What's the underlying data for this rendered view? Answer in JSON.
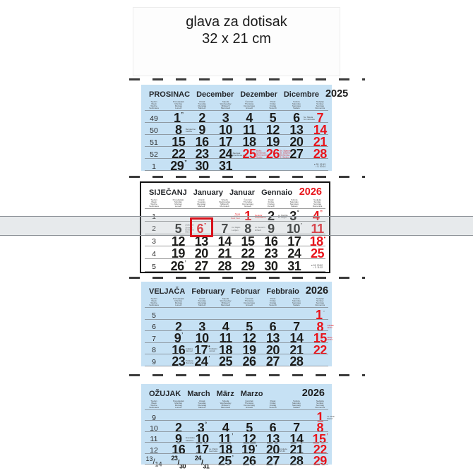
{
  "header": {
    "line1": "glava za dotisak",
    "line2": "32 x 21 cm"
  },
  "colors": {
    "panel_blue": "#c6e1f4",
    "holiday_red": "#e8141b",
    "cursor_red": "#d9121b",
    "band_gray": "#b0b8bf"
  },
  "weekday_header": {
    "week": [
      "Tjedan",
      "Week",
      "Woche",
      "Settimana"
    ],
    "days": [
      [
        "Ponedjeljak",
        "Monday",
        "Montag",
        "Lunedì"
      ],
      [
        "Utorak",
        "Tuesday",
        "Dienstag",
        "Martedì"
      ],
      [
        "Srijeda",
        "Wednesday",
        "Mittwoch",
        "Mercoledì"
      ],
      [
        "Četvrtak",
        "Thursday",
        "Donnerstag",
        "Giovedì"
      ],
      [
        "Petak",
        "Friday",
        "Freitag",
        "Venerdì"
      ],
      [
        "Subota",
        "Saturday",
        "Samstag",
        "Sabato"
      ],
      [
        "Nedjelja",
        "Sunday",
        "Sonntag",
        "Domenica"
      ]
    ]
  },
  "panels": [
    {
      "name": "december",
      "title": [
        "PROSINAC",
        "December",
        "Dezember",
        "Dicembre"
      ],
      "year": "2025",
      "year_red": false,
      "style": "blue",
      "rows": [
        {
          "week": "49",
          "days": [
            {
              "d": "1",
              "mark": "”"
            },
            {
              "d": "2"
            },
            {
              "d": "3"
            },
            {
              "d": "4"
            },
            {
              "d": "5"
            },
            {
              "d": "6",
              "note": {
                "lines": [
                  "Sv. Nikola",
                  "St. Nicholas"
                ]
              }
            },
            {
              "d": "7",
              "red": true
            }
          ]
        },
        {
          "week": "50",
          "days": [
            {
              "d": "8",
              "note": {
                "lines": [
                  "Bezgrešno",
                  "začeće"
                ]
              }
            },
            {
              "d": "9"
            },
            {
              "d": "10"
            },
            {
              "d": "11"
            },
            {
              "d": "12"
            },
            {
              "d": "13"
            },
            {
              "d": "14",
              "red": true
            }
          ]
        },
        {
          "week": "51",
          "days": [
            {
              "d": "15"
            },
            {
              "d": "16"
            },
            {
              "d": "17"
            },
            {
              "d": "18"
            },
            {
              "d": "19"
            },
            {
              "d": "20"
            },
            {
              "d": "21",
              "red": true
            }
          ]
        },
        {
          "week": "52",
          "days": [
            {
              "d": "22"
            },
            {
              "d": "23"
            },
            {
              "d": "24",
              "note": {
                "lines": [
                  "Badnjak",
                  "Christmas Eve"
                ]
              }
            },
            {
              "d": "25",
              "red": true,
              "note": {
                "lines": [
                  "Božić",
                  "Christmas",
                  "Weihnachten",
                  "Natale"
                ],
                "red": true
              }
            },
            {
              "d": "26",
              "red": true,
              "note": {
                "lines": [
                  "Sv. Stjepan",
                  "St. Stephen",
                  "Stefanitag",
                  "S. Stefano"
                ],
                "red": true
              }
            },
            {
              "d": "27"
            },
            {
              "d": "28",
              "red": true
            }
          ]
        },
        {
          "week": "1",
          "days": [
            {
              "d": "29",
              "mark": "”"
            },
            {
              "d": "30"
            },
            {
              "d": "31"
            },
            null,
            null,
            null,
            null
          ]
        }
      ],
      "legend": [
        "● 20. 02:43",
        "○ 5. 00:14"
      ]
    },
    {
      "name": "january",
      "title": [
        "SIJEČANJ",
        "January",
        "Januar",
        "Gennaio"
      ],
      "year": "2026",
      "year_red": true,
      "style": "white",
      "rows": [
        {
          "week": "1",
          "days": [
            null,
            null,
            null,
            {
              "d": "1",
              "red": true,
              "note": {
                "lines": [
                  "Nova",
                  "godina",
                  "New Year"
                ],
                "red": true,
                "side": "left"
              },
              "note2": {
                "lines": [
                  "Neujahr",
                  "Capodanno"
                ],
                "red": true
              }
            },
            {
              "d": "2",
              "note": {
                "lines": [
                  "sv. Bazilije",
                  "sv. Grgur"
                ]
              }
            },
            {
              "d": "3",
              "mark": "°"
            },
            {
              "d": "4",
              "red": true,
              "mark": "”"
            }
          ]
        },
        {
          "week": "2",
          "days": [
            {
              "d": "5",
              "note": {
                "lines": [
                  "Zvjezdan",
                  "Simeon",
                  "Emilijana",
                  "Milena"
                ]
              }
            },
            {
              "d": "6",
              "red": true,
              "frame": true,
              "mark": "”"
            },
            {
              "d": "7",
              "note": {
                "lines": [
                  "sv. Rajko",
                  "Lucijan"
                ]
              }
            },
            {
              "d": "8",
              "note": {
                "lines": [
                  "sv. Severin",
                  "Erhard"
                ]
              }
            },
            {
              "d": "9"
            },
            {
              "d": "10",
              "mark": "’"
            },
            {
              "d": "11",
              "red": true
            }
          ]
        },
        {
          "week": "3",
          "days": [
            {
              "d": "12"
            },
            {
              "d": "13"
            },
            {
              "d": "14"
            },
            {
              "d": "15"
            },
            {
              "d": "16"
            },
            {
              "d": "17"
            },
            {
              "d": "18",
              "red": true,
              "mark": "•"
            }
          ]
        },
        {
          "week": "4",
          "days": [
            {
              "d": "19"
            },
            {
              "d": "20"
            },
            {
              "d": "21"
            },
            {
              "d": "22"
            },
            {
              "d": "23"
            },
            {
              "d": "24"
            },
            {
              "d": "25",
              "red": true
            }
          ]
        },
        {
          "week": "5",
          "days": [
            {
              "d": "26",
              "mark": "’"
            },
            {
              "d": "27"
            },
            {
              "d": "28"
            },
            {
              "d": "29"
            },
            {
              "d": "30"
            },
            {
              "d": "31"
            },
            null
          ]
        }
      ],
      "legend": [
        "● 18. 20:52",
        "○ 3. 11:02"
      ]
    },
    {
      "name": "february",
      "title": [
        "VELJAČA",
        "February",
        "Februar",
        "Febbraio"
      ],
      "year": "2026",
      "year_red": false,
      "style": "blue",
      "rows": [
        {
          "week": "5",
          "days": [
            null,
            null,
            null,
            null,
            null,
            null,
            {
              "d": "1",
              "red": true,
              "mark": "▫",
              "mark_gray": true
            }
          ]
        },
        {
          "week": "6",
          "days": [
            {
              "d": "2"
            },
            {
              "d": "3"
            },
            {
              "d": "4"
            },
            {
              "d": "5"
            },
            {
              "d": "6"
            },
            {
              "d": "7"
            },
            {
              "d": "8",
              "red": true,
              "note": {
                "lines": [
                  "mlađak",
                  "12:21"
                ],
                "red": true
              }
            }
          ]
        },
        {
          "week": "7",
          "days": [
            {
              "d": "9",
              "mark": "’"
            },
            {
              "d": "10"
            },
            {
              "d": "11"
            },
            {
              "d": "12"
            },
            {
              "d": "13"
            },
            {
              "d": "14"
            },
            {
              "d": "15",
              "red": true,
              "note": {
                "lines": [
                  "uštap",
                  "23:54"
                ],
                "red": true
              }
            }
          ]
        },
        {
          "week": "8",
          "days": [
            {
              "d": "16",
              "note": {
                "lines": [
                  "Julijana",
                  "Samuel"
                ]
              }
            },
            {
              "d": "17",
              "mark": "•",
              "note": {
                "lines": [
                  "Pokladni",
                  "utorak"
                ]
              }
            },
            {
              "d": "18"
            },
            {
              "d": "19"
            },
            {
              "d": "20"
            },
            {
              "d": "21"
            },
            {
              "d": "22",
              "red": true
            }
          ]
        },
        {
          "week": "9",
          "days": [
            {
              "d": "23",
              "note": {
                "lines": [
                  "Polikarp",
                  "Romana"
                ]
              }
            },
            {
              "d": "24",
              "mark": "’"
            },
            {
              "d": "25"
            },
            {
              "d": "26"
            },
            {
              "d": "27"
            },
            {
              "d": "28"
            },
            null
          ]
        }
      ]
    },
    {
      "name": "march",
      "title": [
        "OŽUJAK",
        "March",
        "März",
        "Marzo"
      ],
      "year": "2026",
      "year_red": false,
      "style": "blue",
      "rows": [
        {
          "week": "9",
          "days": [
            null,
            null,
            null,
            null,
            null,
            null,
            {
              "d": "1",
              "red": true,
              "note": {
                "lines": [
                  "sv. Albin",
                  "David"
                ]
              }
            }
          ]
        },
        {
          "week": "10",
          "days": [
            {
              "d": "2"
            },
            {
              "d": "3",
              "mark": "°"
            },
            {
              "d": "4"
            },
            {
              "d": "5"
            },
            {
              "d": "6"
            },
            {
              "d": "7"
            },
            {
              "d": "8",
              "red": true
            }
          ]
        },
        {
          "week": "11",
          "days": [
            {
              "d": "9",
              "note": {
                "lines": [
                  "Franciska",
                  "Katarina"
                ]
              }
            },
            {
              "d": "10"
            },
            {
              "d": "11",
              "mark": "’"
            },
            {
              "d": "12"
            },
            {
              "d": "13"
            },
            {
              "d": "14"
            },
            {
              "d": "15",
              "red": true,
              "mark": "’"
            }
          ]
        },
        {
          "week": "12",
          "days": [
            {
              "d": "16"
            },
            {
              "d": "17",
              "note": {
                "lines": [
                  "sv. Patrik",
                  "Gertruda"
                ]
              }
            },
            {
              "d": "18"
            },
            {
              "d": "19",
              "mark": "•"
            },
            {
              "d": "20",
              "note": {
                "lines": [
                  "proljeće",
                  "15:46"
                ]
              }
            },
            {
              "d": "21"
            },
            {
              "d": "22",
              "red": true
            }
          ]
        },
        {
          "week": "13/14",
          "days": [
            {
              "d": "23/30"
            },
            {
              "d": "24/31"
            },
            {
              "d": "25",
              "mark": "’"
            },
            {
              "d": "26"
            },
            {
              "d": "27"
            },
            {
              "d": "28"
            },
            {
              "d": "29",
              "red": true
            }
          ]
        }
      ]
    }
  ],
  "slider": {
    "cursor_month": "SIJEČANJ",
    "cursor_day": "6"
  }
}
